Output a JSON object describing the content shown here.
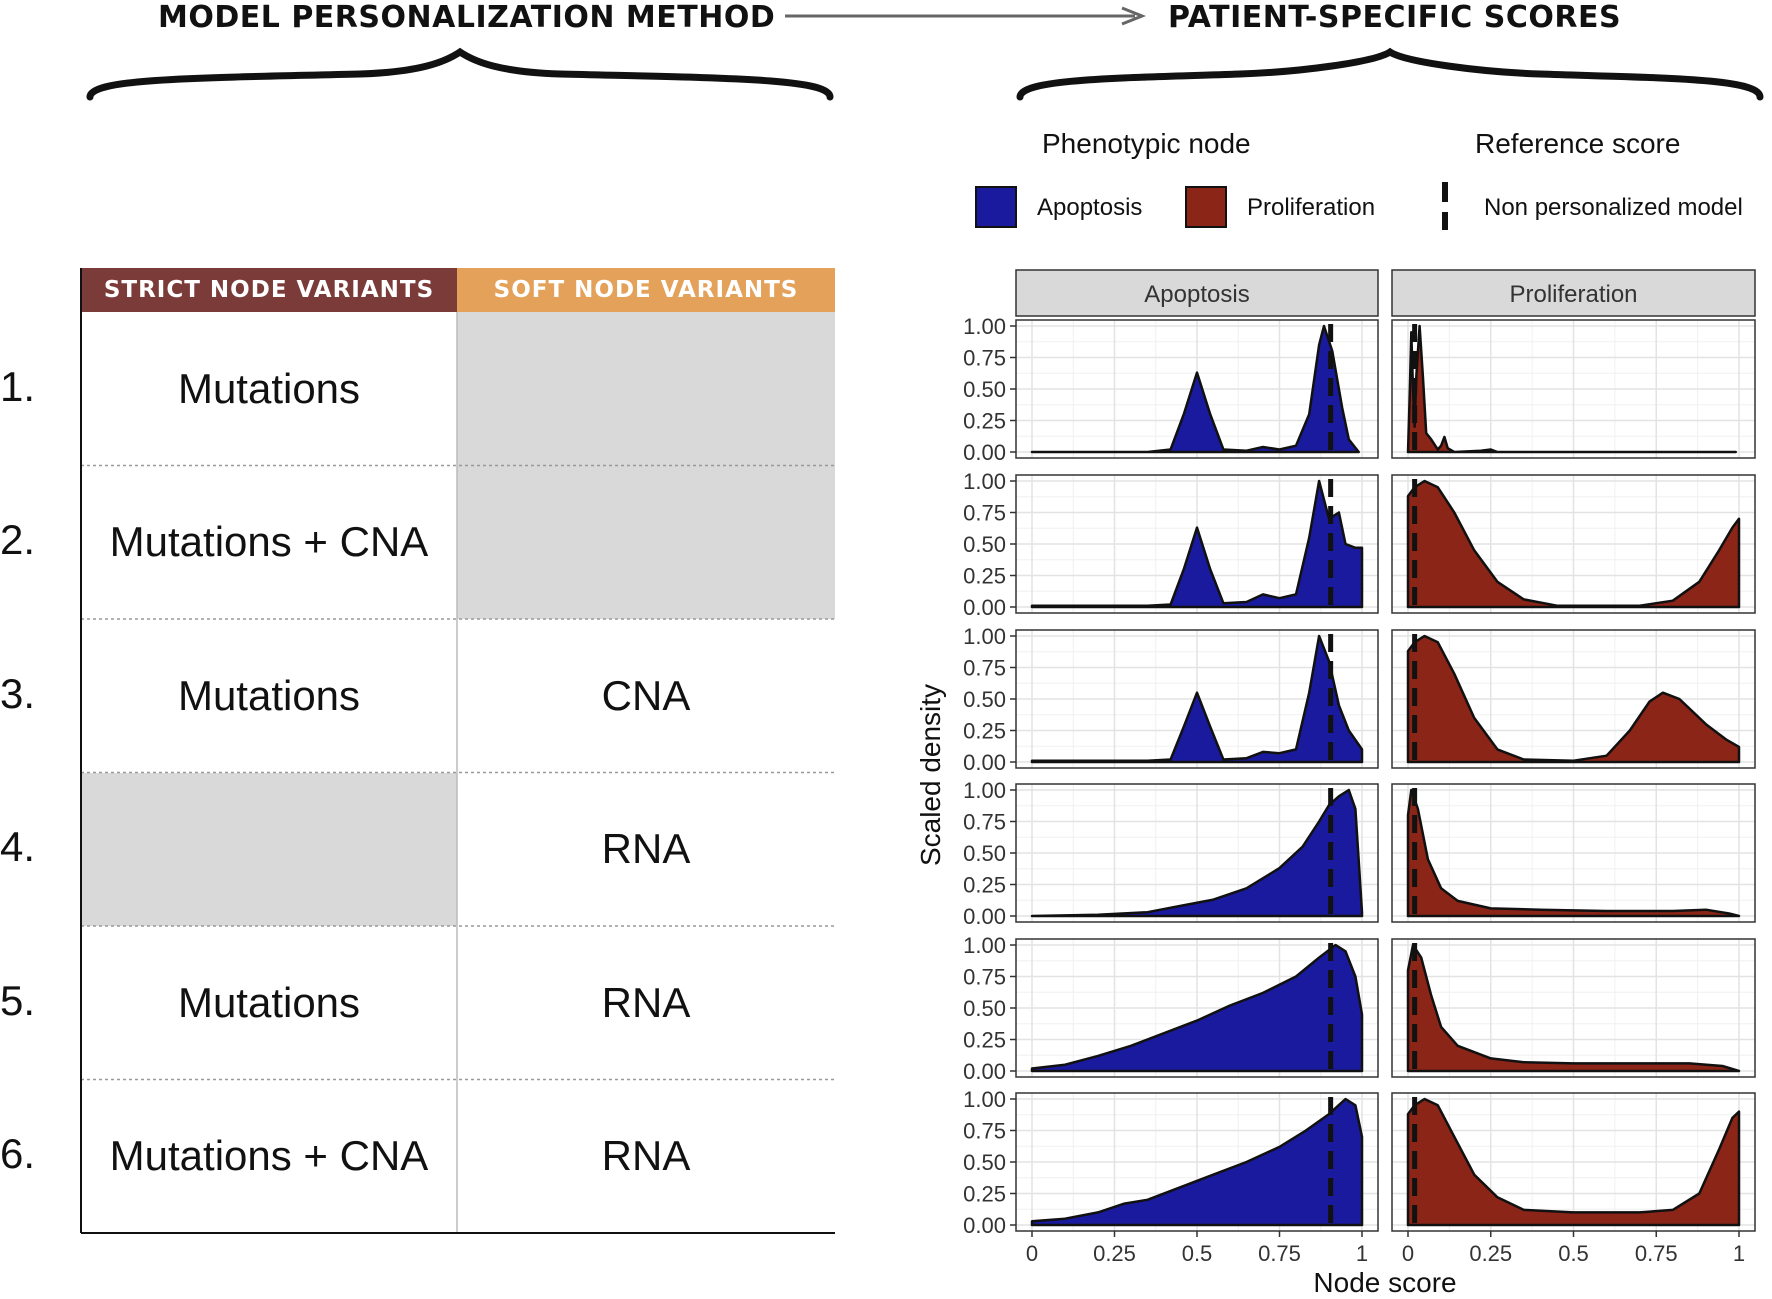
{
  "headings": {
    "left": "MODEL PERSONALIZATION METHOD",
    "right": "PATIENT-SPECIFIC SCORES"
  },
  "table": {
    "headers": [
      "STRICT NODE VARIANTS",
      "SOFT NODE VARIANTS"
    ],
    "header_colors": [
      "#7b3b38",
      "#e3a159"
    ],
    "empty_color": "#d9d9d9",
    "rows": [
      {
        "num": "1.",
        "strict": "Mutations",
        "soft": ""
      },
      {
        "num": "2.",
        "strict": "Mutations + CNA",
        "soft": ""
      },
      {
        "num": "3.",
        "strict": "Mutations",
        "soft": "CNA"
      },
      {
        "num": "4.",
        "strict": "",
        "soft": "RNA"
      },
      {
        "num": "5.",
        "strict": "Mutations",
        "soft": "RNA"
      },
      {
        "num": "6.",
        "strict": "Mutations + CNA",
        "soft": "RNA"
      }
    ]
  },
  "legend": {
    "phenotypic_title": "Phenotypic node",
    "reference_title": "Reference score",
    "apoptosis_label": "Apoptosis",
    "proliferation_label": "Proliferation",
    "reference_label": "Non personalized model",
    "apoptosis_color": "#1a1a9e",
    "proliferation_color": "#8b2518"
  },
  "chart_data": {
    "type": "area",
    "facets": [
      "Apoptosis",
      "Proliferation"
    ],
    "ylabel": "Scaled density",
    "xlabel": "Node score",
    "xlim": [
      0,
      1
    ],
    "ylim": [
      0,
      1
    ],
    "xticks": [
      "0",
      "0.25",
      "0.5",
      "0.75",
      "1"
    ],
    "yticks": [
      "0.00",
      "0.25",
      "0.50",
      "0.75",
      "1.00"
    ],
    "reference_lines": {
      "Apoptosis": 0.905,
      "Proliferation": 0.02
    },
    "rows": [
      {
        "Apoptosis": [
          [
            0,
            0
          ],
          [
            0.35,
            0
          ],
          [
            0.42,
            0.02
          ],
          [
            0.46,
            0.3
          ],
          [
            0.5,
            0.63
          ],
          [
            0.54,
            0.3
          ],
          [
            0.58,
            0.02
          ],
          [
            0.65,
            0.01
          ],
          [
            0.7,
            0.04
          ],
          [
            0.75,
            0.02
          ],
          [
            0.8,
            0.05
          ],
          [
            0.84,
            0.3
          ],
          [
            0.87,
            0.85
          ],
          [
            0.885,
            1.0
          ],
          [
            0.91,
            0.8
          ],
          [
            0.94,
            0.35
          ],
          [
            0.96,
            0.1
          ],
          [
            0.99,
            0.0
          ]
        ],
        "Proliferation": [
          [
            0,
            0
          ],
          [
            0.005,
            0.45
          ],
          [
            0.01,
            0.95
          ],
          [
            0.015,
            0.5
          ],
          [
            0.02,
            0.2
          ],
          [
            0.025,
            0.6
          ],
          [
            0.035,
            1.0
          ],
          [
            0.045,
            0.6
          ],
          [
            0.055,
            0.15
          ],
          [
            0.07,
            0.1
          ],
          [
            0.09,
            0.02
          ],
          [
            0.1,
            0.05
          ],
          [
            0.11,
            0.12
          ],
          [
            0.12,
            0.03
          ],
          [
            0.14,
            0.0
          ],
          [
            0.22,
            0.01
          ],
          [
            0.25,
            0.02
          ],
          [
            0.27,
            0.0
          ],
          [
            0.99,
            0.0
          ]
        ]
      },
      {
        "Apoptosis": [
          [
            0,
            0.01
          ],
          [
            0.35,
            0.01
          ],
          [
            0.42,
            0.02
          ],
          [
            0.46,
            0.3
          ],
          [
            0.5,
            0.63
          ],
          [
            0.54,
            0.3
          ],
          [
            0.58,
            0.03
          ],
          [
            0.65,
            0.04
          ],
          [
            0.7,
            0.1
          ],
          [
            0.75,
            0.07
          ],
          [
            0.8,
            0.1
          ],
          [
            0.84,
            0.55
          ],
          [
            0.87,
            1.0
          ],
          [
            0.9,
            0.7
          ],
          [
            0.93,
            0.75
          ],
          [
            0.95,
            0.5
          ],
          [
            0.98,
            0.47
          ],
          [
            1.0,
            0.47
          ]
        ],
        "Proliferation": [
          [
            0,
            0.88
          ],
          [
            0.02,
            0.95
          ],
          [
            0.05,
            1.0
          ],
          [
            0.09,
            0.95
          ],
          [
            0.14,
            0.75
          ],
          [
            0.2,
            0.45
          ],
          [
            0.27,
            0.2
          ],
          [
            0.35,
            0.06
          ],
          [
            0.45,
            0.01
          ],
          [
            0.7,
            0.01
          ],
          [
            0.8,
            0.05
          ],
          [
            0.88,
            0.2
          ],
          [
            0.94,
            0.45
          ],
          [
            0.98,
            0.63
          ],
          [
            1.0,
            0.7
          ]
        ]
      },
      {
        "Apoptosis": [
          [
            0,
            0.01
          ],
          [
            0.35,
            0.01
          ],
          [
            0.42,
            0.02
          ],
          [
            0.46,
            0.28
          ],
          [
            0.5,
            0.55
          ],
          [
            0.54,
            0.28
          ],
          [
            0.58,
            0.02
          ],
          [
            0.65,
            0.03
          ],
          [
            0.7,
            0.08
          ],
          [
            0.75,
            0.07
          ],
          [
            0.8,
            0.1
          ],
          [
            0.84,
            0.55
          ],
          [
            0.87,
            1.0
          ],
          [
            0.9,
            0.8
          ],
          [
            0.93,
            0.45
          ],
          [
            0.96,
            0.25
          ],
          [
            1.0,
            0.1
          ]
        ],
        "Proliferation": [
          [
            0,
            0.88
          ],
          [
            0.02,
            0.95
          ],
          [
            0.05,
            1.0
          ],
          [
            0.09,
            0.95
          ],
          [
            0.14,
            0.7
          ],
          [
            0.2,
            0.35
          ],
          [
            0.27,
            0.1
          ],
          [
            0.35,
            0.02
          ],
          [
            0.5,
            0.01
          ],
          [
            0.6,
            0.05
          ],
          [
            0.67,
            0.25
          ],
          [
            0.73,
            0.48
          ],
          [
            0.77,
            0.55
          ],
          [
            0.82,
            0.5
          ],
          [
            0.9,
            0.3
          ],
          [
            0.96,
            0.18
          ],
          [
            1.0,
            0.12
          ]
        ]
      },
      {
        "Apoptosis": [
          [
            0,
            0
          ],
          [
            0.2,
            0.01
          ],
          [
            0.35,
            0.03
          ],
          [
            0.45,
            0.08
          ],
          [
            0.55,
            0.13
          ],
          [
            0.65,
            0.22
          ],
          [
            0.75,
            0.38
          ],
          [
            0.82,
            0.55
          ],
          [
            0.87,
            0.75
          ],
          [
            0.9,
            0.88
          ],
          [
            0.93,
            0.95
          ],
          [
            0.96,
            1.0
          ],
          [
            0.98,
            0.85
          ],
          [
            1.0,
            0.03
          ]
        ],
        "Proliferation": [
          [
            0,
            0.8
          ],
          [
            0.01,
            1.0
          ],
          [
            0.03,
            0.85
          ],
          [
            0.06,
            0.45
          ],
          [
            0.1,
            0.22
          ],
          [
            0.15,
            0.12
          ],
          [
            0.25,
            0.06
          ],
          [
            0.4,
            0.05
          ],
          [
            0.6,
            0.04
          ],
          [
            0.8,
            0.04
          ],
          [
            0.9,
            0.05
          ],
          [
            0.97,
            0.02
          ],
          [
            1.0,
            0.0
          ]
        ]
      },
      {
        "Apoptosis": [
          [
            0,
            0.02
          ],
          [
            0.1,
            0.05
          ],
          [
            0.2,
            0.12
          ],
          [
            0.3,
            0.2
          ],
          [
            0.4,
            0.3
          ],
          [
            0.5,
            0.4
          ],
          [
            0.6,
            0.52
          ],
          [
            0.7,
            0.62
          ],
          [
            0.8,
            0.75
          ],
          [
            0.87,
            0.9
          ],
          [
            0.92,
            1.0
          ],
          [
            0.95,
            0.95
          ],
          [
            0.98,
            0.75
          ],
          [
            1.0,
            0.45
          ]
        ],
        "Proliferation": [
          [
            0,
            0.8
          ],
          [
            0.015,
            1.0
          ],
          [
            0.04,
            0.9
          ],
          [
            0.07,
            0.6
          ],
          [
            0.1,
            0.35
          ],
          [
            0.15,
            0.2
          ],
          [
            0.25,
            0.1
          ],
          [
            0.35,
            0.07
          ],
          [
            0.5,
            0.06
          ],
          [
            0.7,
            0.06
          ],
          [
            0.85,
            0.06
          ],
          [
            0.95,
            0.04
          ],
          [
            1.0,
            0.0
          ]
        ]
      },
      {
        "Apoptosis": [
          [
            0,
            0.03
          ],
          [
            0.1,
            0.05
          ],
          [
            0.2,
            0.1
          ],
          [
            0.28,
            0.17
          ],
          [
            0.35,
            0.2
          ],
          [
            0.45,
            0.3
          ],
          [
            0.55,
            0.4
          ],
          [
            0.65,
            0.5
          ],
          [
            0.75,
            0.62
          ],
          [
            0.83,
            0.75
          ],
          [
            0.9,
            0.88
          ],
          [
            0.95,
            1.0
          ],
          [
            0.98,
            0.95
          ],
          [
            1.0,
            0.7
          ]
        ],
        "Proliferation": [
          [
            0,
            0.88
          ],
          [
            0.02,
            0.95
          ],
          [
            0.05,
            1.0
          ],
          [
            0.09,
            0.95
          ],
          [
            0.14,
            0.7
          ],
          [
            0.2,
            0.4
          ],
          [
            0.27,
            0.22
          ],
          [
            0.35,
            0.12
          ],
          [
            0.5,
            0.1
          ],
          [
            0.7,
            0.1
          ],
          [
            0.8,
            0.12
          ],
          [
            0.88,
            0.25
          ],
          [
            0.94,
            0.6
          ],
          [
            0.98,
            0.85
          ],
          [
            1.0,
            0.9
          ]
        ]
      }
    ]
  }
}
